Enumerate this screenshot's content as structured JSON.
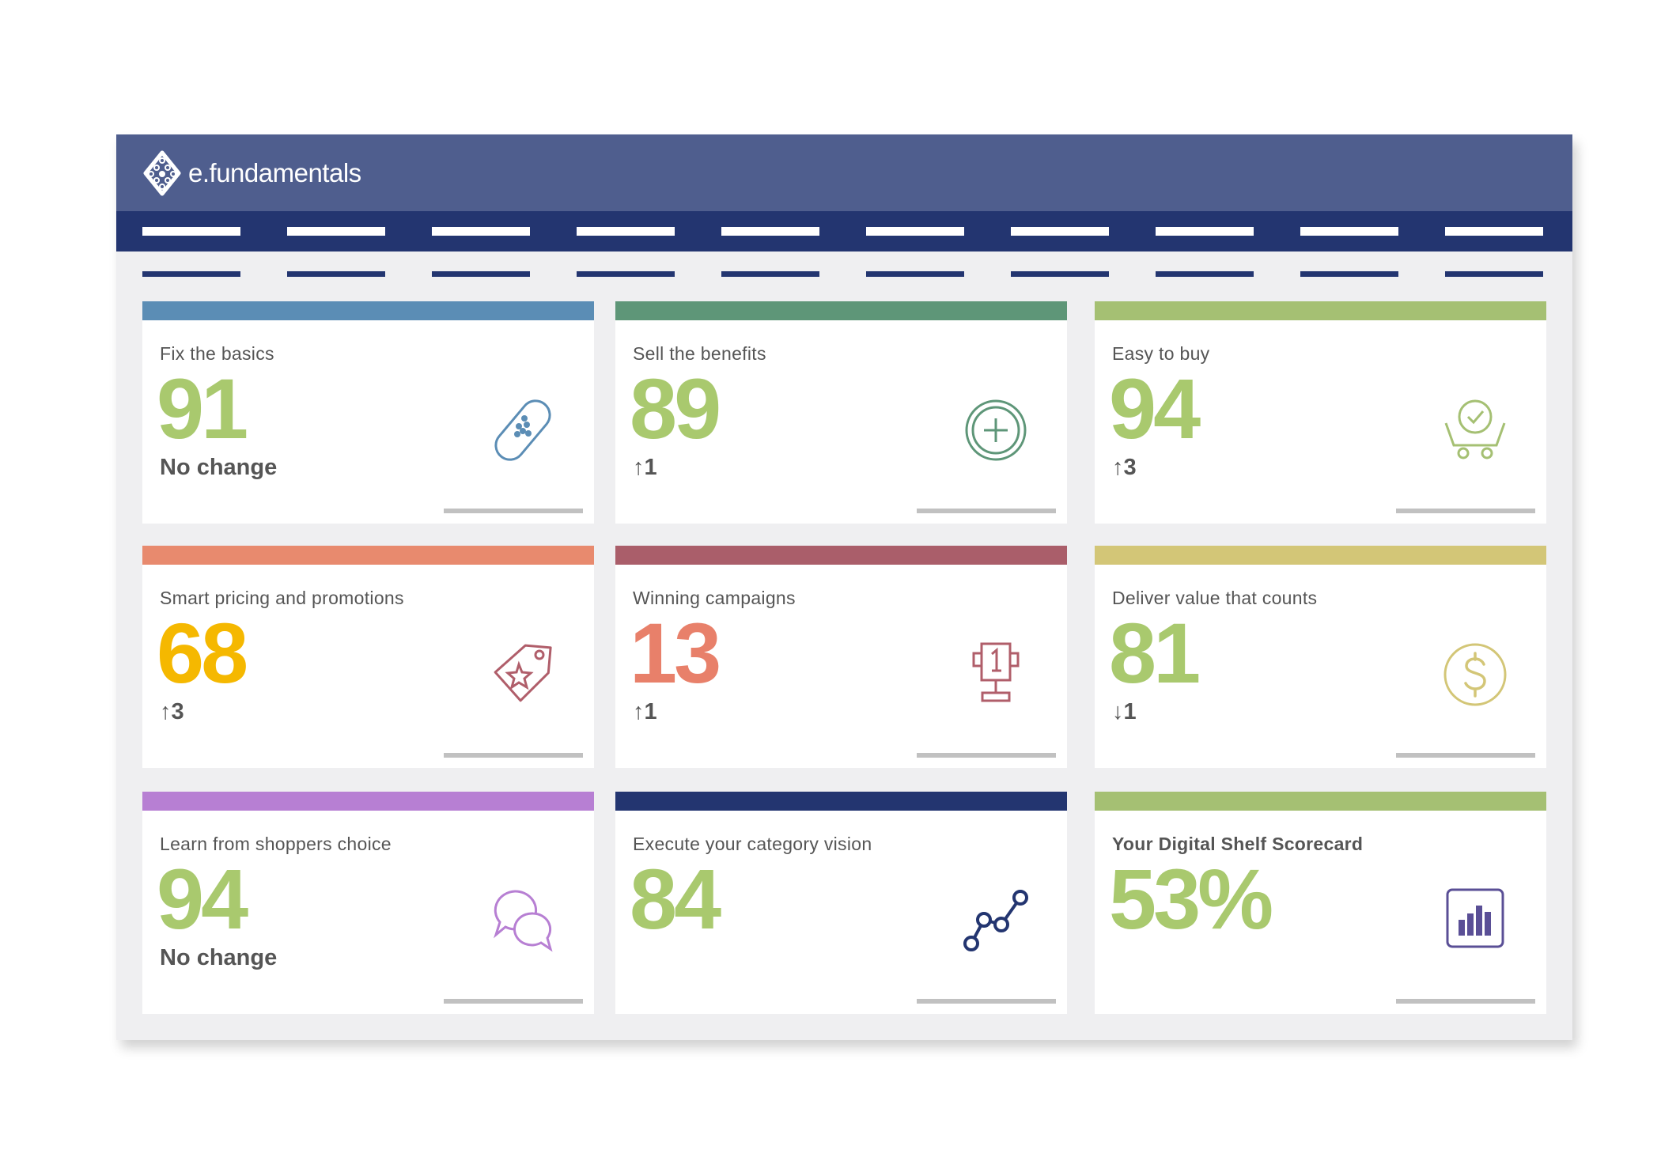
{
  "app": {
    "brand": "e.fundamentals",
    "nav_item_count": 10,
    "subnav_item_count": 10
  },
  "cards": [
    {
      "title": "Fix the basics",
      "value": "91",
      "change": "No change",
      "stripe": "#5b8db5",
      "value_color": "#a9c96e",
      "icon": "bandage-icon"
    },
    {
      "title": "Sell the benefits",
      "value": "89",
      "change": "↑1",
      "stripe": "#5e9678",
      "value_color": "#a9c96e",
      "icon": "plus-circle-icon"
    },
    {
      "title": "Easy to buy",
      "value": "94",
      "change": "↑3",
      "stripe": "#a5c073",
      "value_color": "#a9c96e",
      "icon": "cart-check-icon"
    },
    {
      "title": "Smart pricing and promotions",
      "value": "68",
      "change": "↑3",
      "stripe": "#e88a6e",
      "value_color": "#f5b800",
      "icon": "price-tag-icon"
    },
    {
      "title": "Winning campaigns",
      "value": "13",
      "change": "↑1",
      "stripe": "#aa5e6a",
      "value_color": "#e8806a",
      "icon": "trophy-icon"
    },
    {
      "title": "Deliver value that counts",
      "value": "81",
      "change": "↓1",
      "stripe": "#d3c677",
      "value_color": "#a9c96e",
      "icon": "dollar-coin-icon"
    },
    {
      "title": "Learn from shoppers choice",
      "value": "94",
      "change": "No change",
      "stripe": "#b77fd3",
      "value_color": "#a9c96e",
      "icon": "chat-bubbles-icon"
    },
    {
      "title": "Execute your category vision",
      "value": "84",
      "change": "",
      "stripe": "#233570",
      "value_color": "#a9c96e",
      "icon": "line-graph-icon"
    },
    {
      "title": "Your Digital Shelf Scorecard",
      "value": "53%",
      "change": "",
      "stripe": "#a5c073",
      "value_color": "#a9c96e",
      "icon": "bar-chart-icon"
    }
  ]
}
